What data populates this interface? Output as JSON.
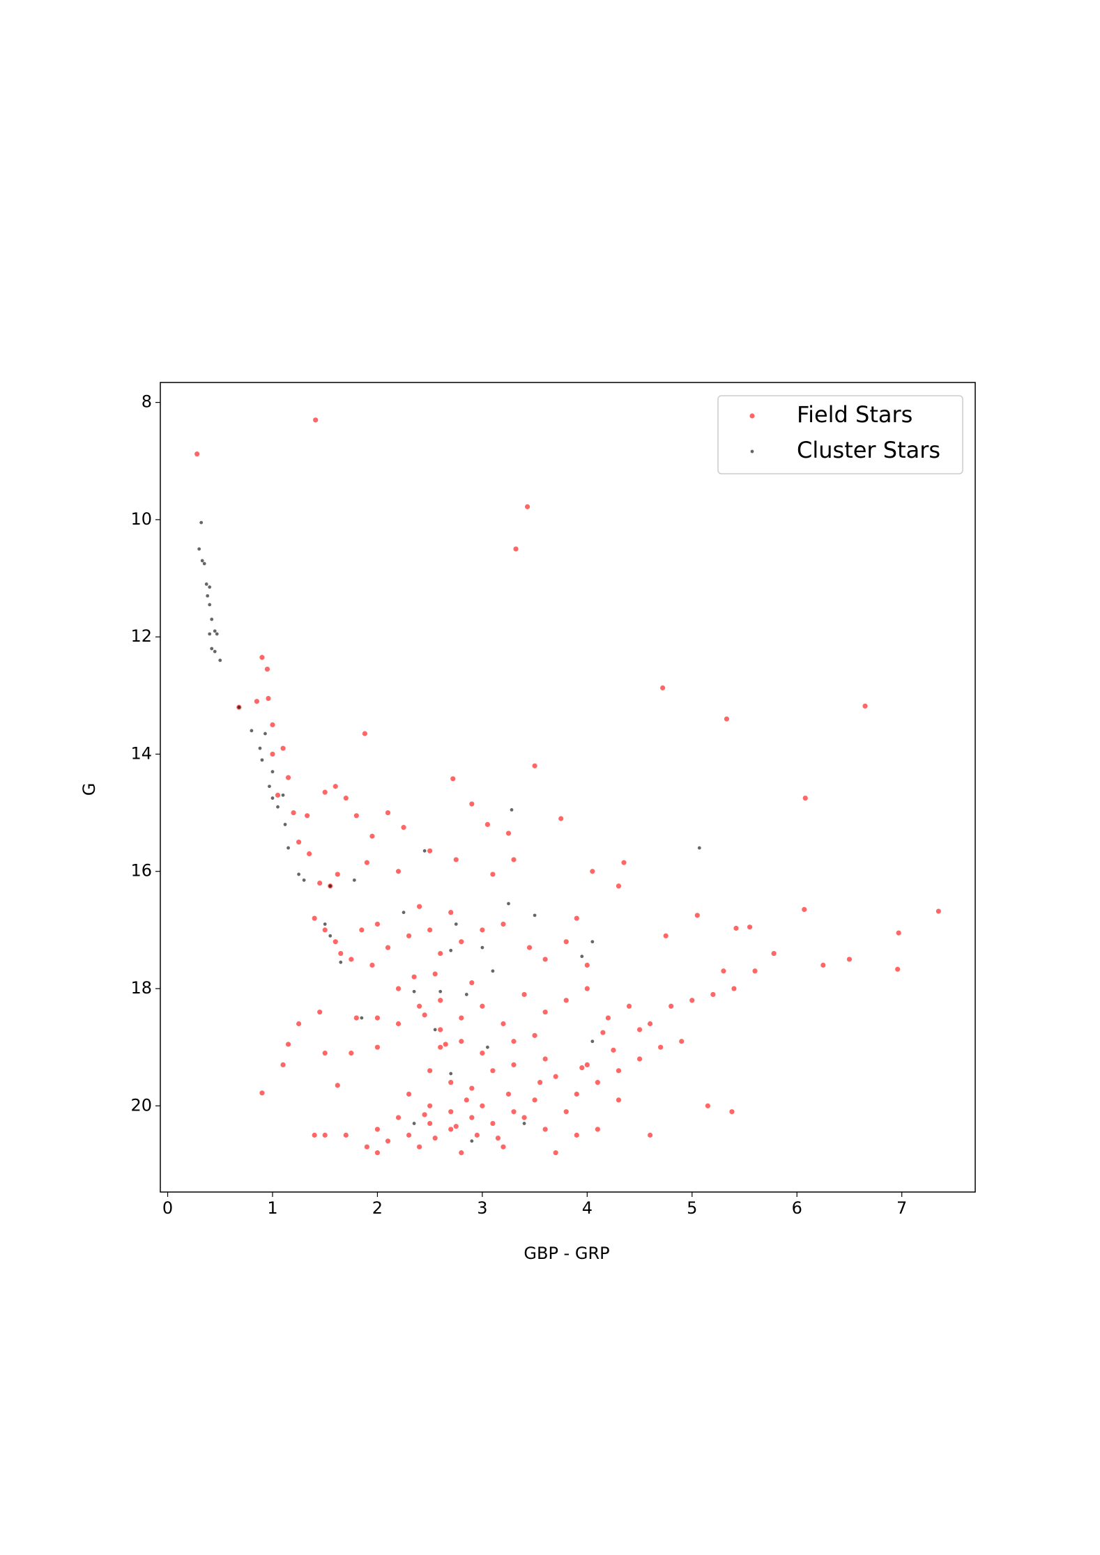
{
  "chart_data": {
    "type": "scatter",
    "x_label": "GBP - GRP",
    "y_label": "G",
    "xlim": [
      -0.07,
      7.7
    ],
    "ylim": [
      21.47,
      7.66
    ],
    "xticks": [
      0,
      1,
      2,
      3,
      4,
      5,
      6,
      7
    ],
    "yticks": [
      8,
      10,
      12,
      14,
      16,
      18,
      20
    ],
    "legend": "upper right",
    "series": [
      {
        "name": "Field Stars",
        "color": "#ff0000",
        "x": [
          1.41,
          0.28,
          3.43,
          3.32,
          0.9,
          0.95,
          4.72,
          6.65,
          5.33,
          0.68,
          0.85,
          0.96,
          1.0,
          1.88,
          3.5,
          2.72,
          6.08,
          1.0,
          1.1,
          1.15,
          1.05,
          1.2,
          1.33,
          1.5,
          1.6,
          1.7,
          1.8,
          2.1,
          1.95,
          2.25,
          2.9,
          3.05,
          3.25,
          3.75,
          1.25,
          1.35,
          1.45,
          1.55,
          1.62,
          1.9,
          2.2,
          2.5,
          2.75,
          3.1,
          3.3,
          4.05,
          4.35,
          4.3,
          5.05,
          6.07,
          7.35,
          6.97,
          6.96,
          6.5,
          6.25,
          5.78,
          5.55,
          5.42,
          5.6,
          5.3,
          4.75,
          1.4,
          1.5,
          1.6,
          1.65,
          1.75,
          1.85,
          2.0,
          2.1,
          1.95,
          2.3,
          2.4,
          2.5,
          2.6,
          2.7,
          2.8,
          3.0,
          3.2,
          3.45,
          3.6,
          3.8,
          3.9,
          4.0,
          1.45,
          1.5,
          1.25,
          1.15,
          1.1,
          0.9,
          1.62,
          1.75,
          2.0,
          2.2,
          2.4,
          2.6,
          2.8,
          3.0,
          3.2,
          3.4,
          3.6,
          3.8,
          4.0,
          4.2,
          4.4,
          4.6,
          4.8,
          5.0,
          5.2,
          5.4,
          4.7,
          4.5,
          4.3,
          4.1,
          3.9,
          3.7,
          3.5,
          3.3,
          3.1,
          2.9,
          2.7,
          2.5,
          2.3,
          2.1,
          1.9,
          1.7,
          1.5,
          1.4,
          2.0,
          2.4,
          2.8,
          3.2,
          3.7,
          4.6,
          5.15,
          5.38,
          4.1,
          4.3,
          3.6,
          2.6,
          2.8,
          3.0,
          2.5,
          2.7,
          2.9,
          3.1,
          2.3,
          2.5,
          2.7,
          3.0,
          3.4,
          3.8,
          4.0,
          3.3,
          2.2,
          1.8,
          2.0,
          3.5,
          4.9,
          4.5,
          2.6,
          3.6,
          2.55,
          2.75,
          2.95,
          3.15,
          2.45,
          2.85,
          3.25,
          3.55,
          3.95,
          4.25,
          2.65,
          2.45,
          2.35,
          2.55,
          2.9,
          3.3,
          2.2,
          2.0,
          3.9,
          4.15
        ],
        "values": [
          8.3,
          8.88,
          9.78,
          10.5,
          12.35,
          12.55,
          12.87,
          13.18,
          13.4,
          13.2,
          13.1,
          13.05,
          13.5,
          13.65,
          14.2,
          14.42,
          14.75,
          14.0,
          13.9,
          14.4,
          14.7,
          15.0,
          15.05,
          14.65,
          14.55,
          14.75,
          15.05,
          15.0,
          15.4,
          15.25,
          14.85,
          15.2,
          15.35,
          15.1,
          15.5,
          15.7,
          16.2,
          16.25,
          16.05,
          15.85,
          16.0,
          15.65,
          15.8,
          16.05,
          15.8,
          16.0,
          15.85,
          16.25,
          16.75,
          16.65,
          16.68,
          17.05,
          17.67,
          17.5,
          17.6,
          17.4,
          16.95,
          16.97,
          17.7,
          17.7,
          17.1,
          16.8,
          17.0,
          17.2,
          17.4,
          17.5,
          17.0,
          16.9,
          17.3,
          17.6,
          17.1,
          16.6,
          17.0,
          17.4,
          16.7,
          17.2,
          17.0,
          16.9,
          17.3,
          17.5,
          17.2,
          16.8,
          17.6,
          18.4,
          19.1,
          18.6,
          18.95,
          19.3,
          19.78,
          19.65,
          19.1,
          18.5,
          18.0,
          18.3,
          18.2,
          18.5,
          18.3,
          18.6,
          18.1,
          18.4,
          18.2,
          18.0,
          18.5,
          18.3,
          18.6,
          18.3,
          18.2,
          18.1,
          18.0,
          19.0,
          19.2,
          19.4,
          19.6,
          19.8,
          19.5,
          19.9,
          20.1,
          20.3,
          20.2,
          20.4,
          20.3,
          20.5,
          20.6,
          20.7,
          20.5,
          20.5,
          20.5,
          20.8,
          20.7,
          20.8,
          20.7,
          20.8,
          20.5,
          20.0,
          20.1,
          20.4,
          19.9,
          20.4,
          19.0,
          18.9,
          19.1,
          19.4,
          19.6,
          19.7,
          19.4,
          19.8,
          20.0,
          20.1,
          20.0,
          20.2,
          20.1,
          19.3,
          19.3,
          18.6,
          18.5,
          19.0,
          18.8,
          18.9,
          18.7,
          18.7,
          19.2,
          20.55,
          20.35,
          20.5,
          20.55,
          20.15,
          19.9,
          19.8,
          19.6,
          19.35,
          19.05,
          18.95,
          18.45,
          17.8,
          17.75,
          17.9,
          18.9,
          20.2,
          20.4,
          20.5,
          18.75
        ]
      },
      {
        "name": "Cluster Stars",
        "color": "#000000",
        "x": [
          0.32,
          0.3,
          0.33,
          0.35,
          0.37,
          0.4,
          0.38,
          0.4,
          0.42,
          0.45,
          0.4,
          0.42,
          0.45,
          0.47,
          0.5,
          0.68,
          0.8,
          0.88,
          0.93,
          0.9,
          0.97,
          1.0,
          1.05,
          1.1,
          1.12,
          1.0,
          1.15,
          1.25,
          1.3,
          1.55,
          1.5,
          1.55,
          1.65,
          1.78,
          2.45,
          3.28,
          5.07,
          3.25,
          3.5,
          2.25,
          2.75,
          3.0,
          2.35,
          2.6,
          2.85,
          3.1,
          3.95,
          4.05,
          1.85,
          2.55,
          3.05,
          2.7,
          2.35,
          2.9,
          3.4,
          4.05,
          2.7
        ],
        "values": [
          10.05,
          10.5,
          10.7,
          10.75,
          11.1,
          11.15,
          11.3,
          11.45,
          11.7,
          11.9,
          11.95,
          12.2,
          12.25,
          11.95,
          12.4,
          13.2,
          13.6,
          13.9,
          13.65,
          14.1,
          14.55,
          14.75,
          14.9,
          14.7,
          15.2,
          14.3,
          15.6,
          16.05,
          16.15,
          16.25,
          16.9,
          17.1,
          17.55,
          16.15,
          15.65,
          14.95,
          15.6,
          16.55,
          16.75,
          16.7,
          16.9,
          17.3,
          18.05,
          18.05,
          18.1,
          17.7,
          17.45,
          17.2,
          18.5,
          18.7,
          19.0,
          19.45,
          20.3,
          20.6,
          20.3,
          18.9,
          17.35
        ]
      }
    ]
  }
}
